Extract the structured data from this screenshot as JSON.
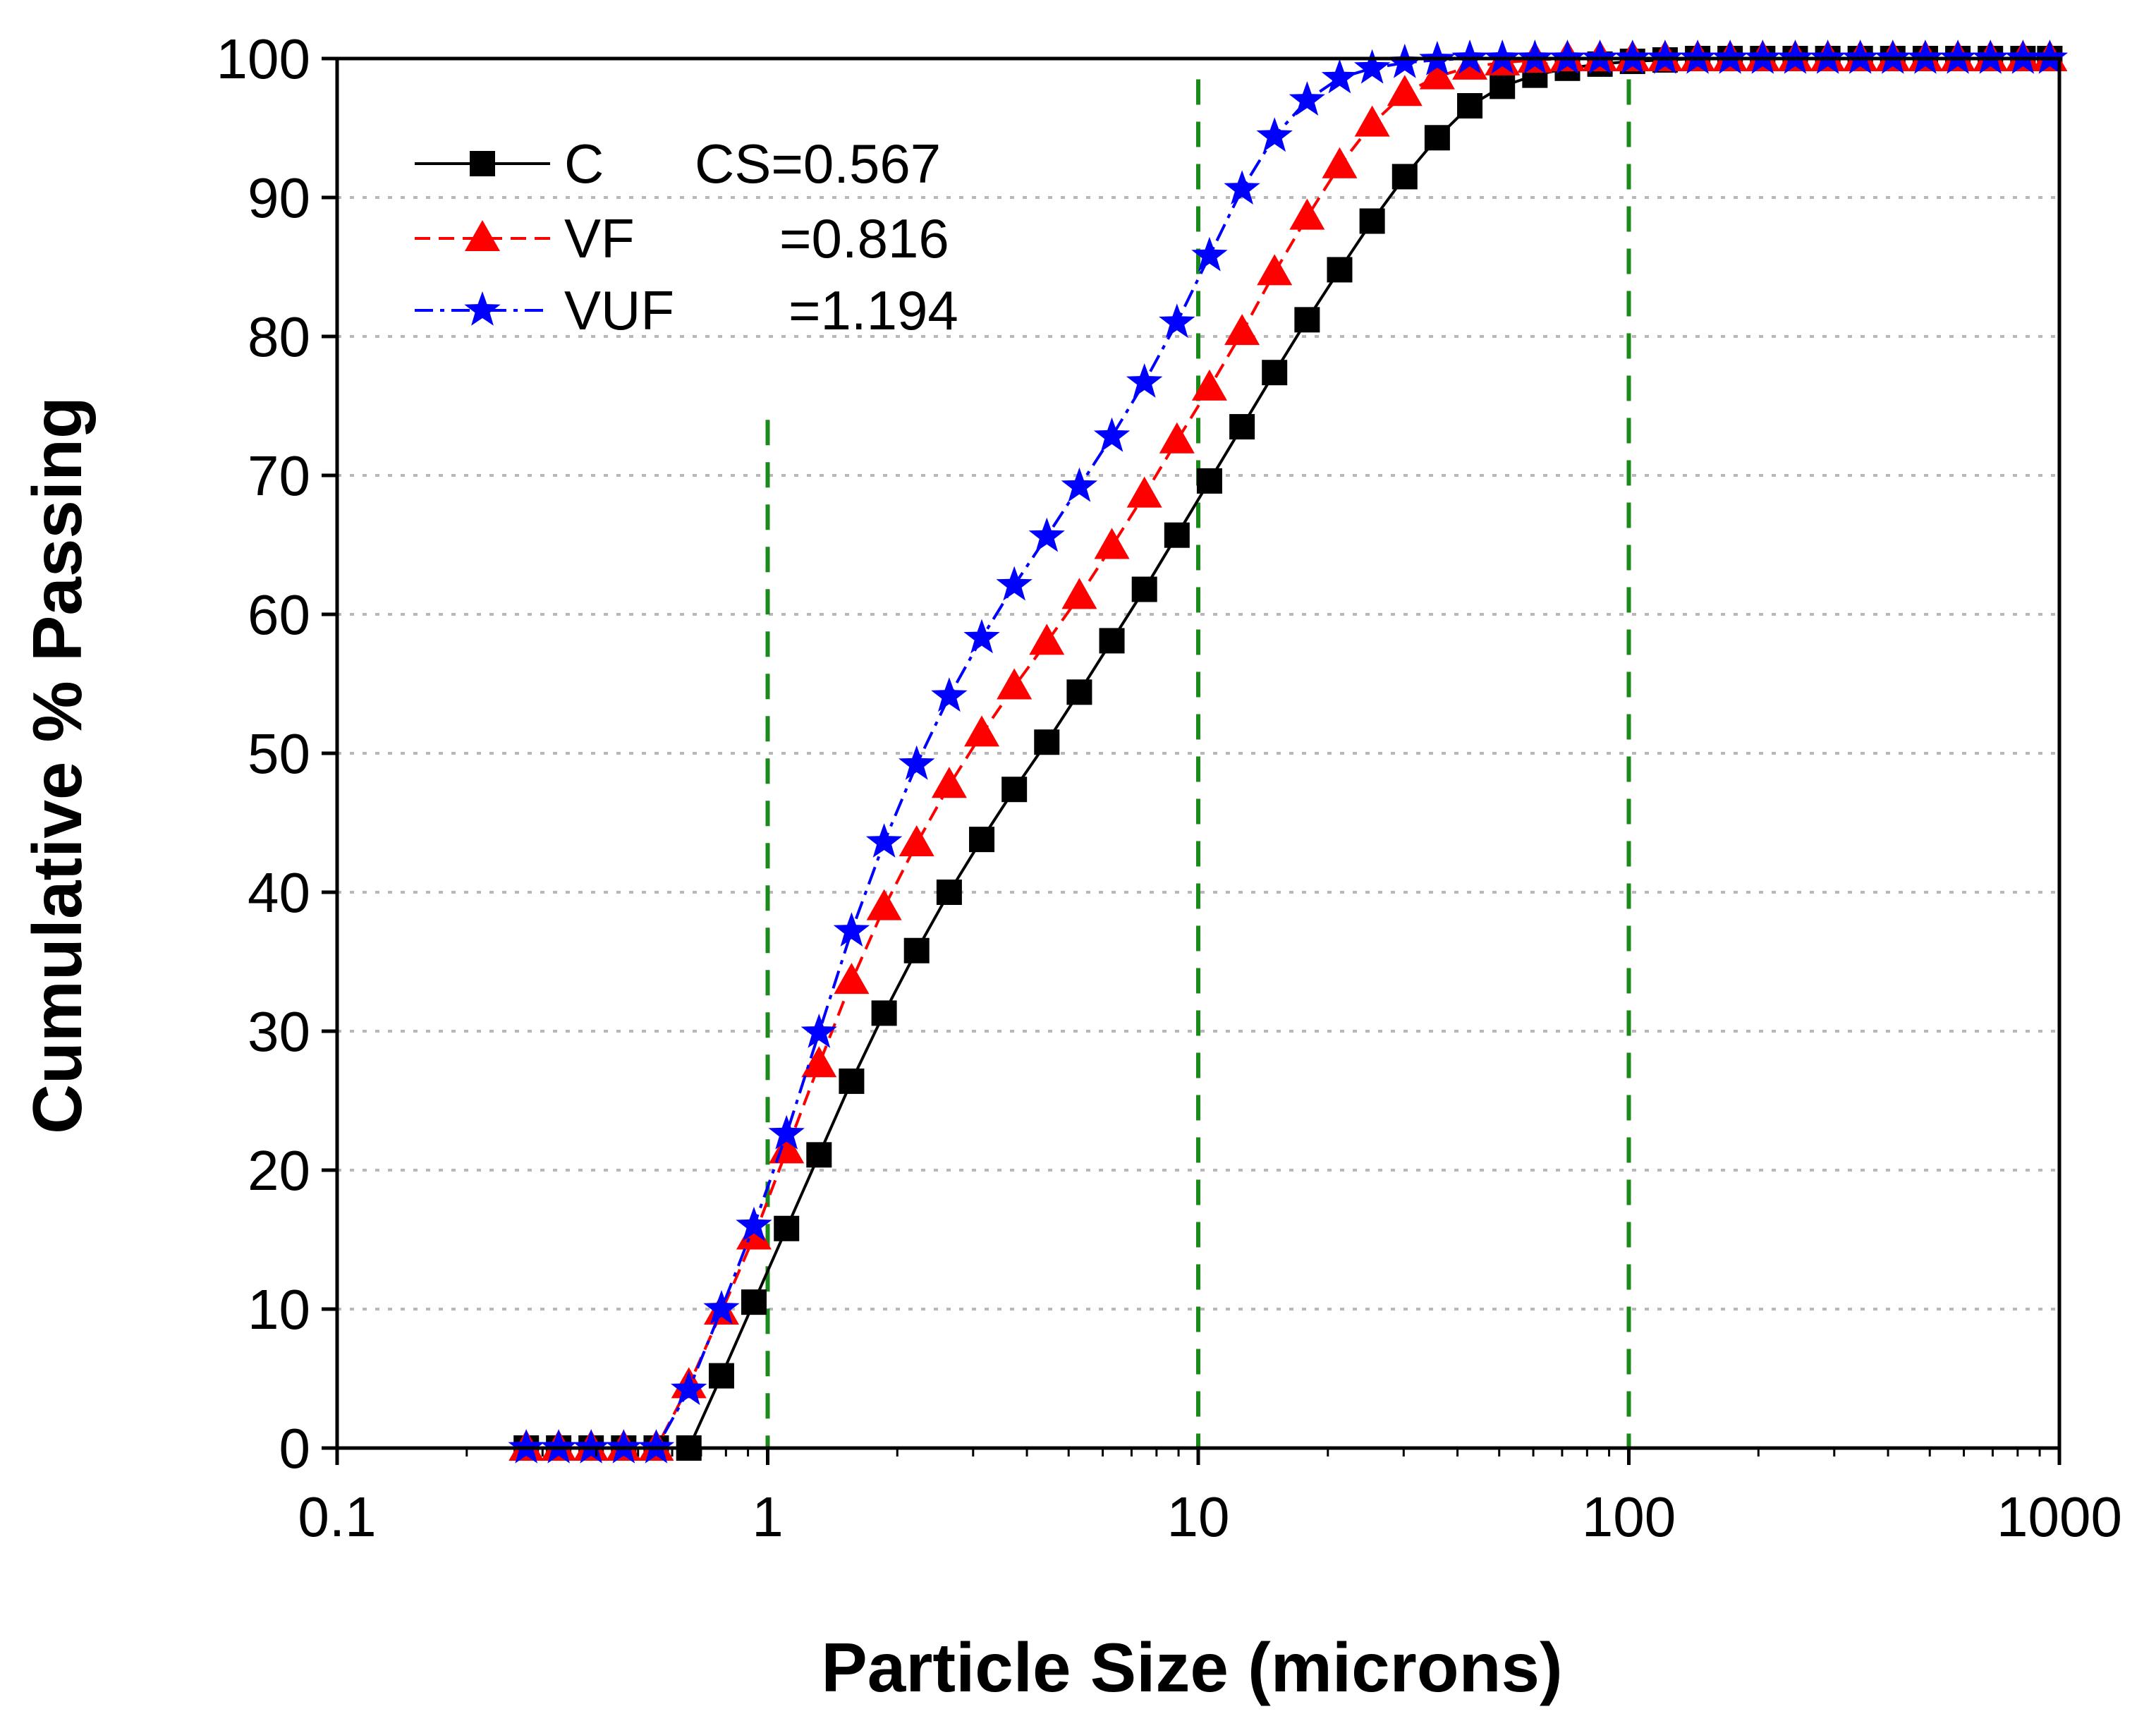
{
  "chart_data": {
    "type": "scatter",
    "xscale": "log",
    "xlabel": "Particle Size (microns)",
    "ylabel": "Cumulative % Passing",
    "xlim": [
      0.1,
      1000
    ],
    "ylim": [
      0,
      100
    ],
    "xticks": [
      0.1,
      1,
      10,
      100,
      1000
    ],
    "xtick_labels": [
      "0.1",
      "1",
      "10",
      "100",
      "1000"
    ],
    "yticks": [
      0,
      10,
      20,
      30,
      40,
      50,
      60,
      70,
      80,
      90,
      100
    ],
    "ytick_labels": [
      "0",
      "10",
      "20",
      "30",
      "40",
      "50",
      "60",
      "70",
      "80",
      "90",
      "100"
    ],
    "grid": "horizontal dotted",
    "reference_lines_x": [
      1,
      10,
      100
    ],
    "legend_position": "top-left",
    "series": [
      {
        "name": "C",
        "legend_value": "CS=0.567",
        "marker": "square",
        "color": "#000000",
        "line": "solid",
        "x": [
          0.275,
          0.327,
          0.389,
          0.463,
          0.551,
          0.656,
          0.781,
          0.929,
          1.106,
          1.316,
          1.566,
          1.864,
          2.218,
          2.64,
          3.142,
          3.739,
          4.449,
          5.295,
          6.301,
          7.499,
          8.924,
          10.62,
          12.64,
          15.04,
          17.9,
          21.3,
          25.35,
          30.17,
          35.9,
          42.73,
          50.85,
          60.52,
          72.02,
          85.71,
          102,
          121.4,
          144.5,
          171.9,
          204.6,
          243.5,
          289.8,
          344.8,
          410.3,
          488.3,
          581.1,
          691.6,
          823,
          950
        ],
        "y": [
          0,
          0,
          0,
          0,
          0,
          0,
          5.2,
          10.5,
          15.8,
          21.1,
          26.4,
          31.3,
          35.8,
          40.0,
          43.8,
          47.4,
          50.8,
          54.4,
          58.1,
          61.8,
          65.7,
          69.6,
          73.5,
          77.4,
          81.2,
          84.8,
          88.3,
          91.5,
          94.3,
          96.6,
          98.0,
          98.8,
          99.3,
          99.6,
          99.8,
          99.9,
          100,
          100,
          100,
          100,
          100,
          100,
          100,
          100,
          100,
          100,
          100,
          100
        ]
      },
      {
        "name": "VF",
        "legend_value": "=0.816",
        "marker": "triangle",
        "color": "#ff0000",
        "line": "dashed",
        "x": [
          0.275,
          0.327,
          0.389,
          0.463,
          0.551,
          0.656,
          0.781,
          0.929,
          1.106,
          1.316,
          1.566,
          1.864,
          2.218,
          2.64,
          3.142,
          3.739,
          4.449,
          5.295,
          6.301,
          7.499,
          8.924,
          10.62,
          12.64,
          15.04,
          17.9,
          21.3,
          25.35,
          30.17,
          35.9,
          42.73,
          50.85,
          60.52,
          72.02,
          85.71,
          102,
          121.4,
          144.5,
          171.9,
          204.6,
          243.5,
          289.8,
          344.8,
          410.3,
          488.3,
          581.1,
          691.6,
          823,
          950
        ],
        "y": [
          0,
          0,
          0,
          0,
          0,
          4.5,
          9.8,
          15.2,
          21.4,
          27.6,
          33.6,
          38.9,
          43.5,
          47.7,
          51.4,
          54.8,
          58.0,
          61.3,
          64.9,
          68.6,
          72.5,
          76.3,
          80.3,
          84.6,
          88.6,
          92.3,
          95.3,
          97.5,
          98.7,
          99.4,
          99.7,
          99.9,
          100,
          100,
          100,
          100,
          100,
          100,
          100,
          100,
          100,
          100,
          100,
          100,
          100,
          100,
          100,
          100
        ]
      },
      {
        "name": "VUF",
        "legend_value": "=1.194",
        "marker": "star",
        "color": "#0000ff",
        "line": "dash-dot",
        "x": [
          0.275,
          0.327,
          0.389,
          0.463,
          0.551,
          0.656,
          0.781,
          0.929,
          1.106,
          1.316,
          1.566,
          1.864,
          2.218,
          2.64,
          3.142,
          3.739,
          4.449,
          5.295,
          6.301,
          7.499,
          8.924,
          10.62,
          12.64,
          15.04,
          17.9,
          21.3,
          25.35,
          30.17,
          35.9,
          42.73,
          50.85,
          60.52,
          72.02,
          85.71,
          102,
          121.4,
          144.5,
          171.9,
          204.6,
          243.5,
          289.8,
          344.8,
          410.3,
          488.3,
          581.1,
          691.6,
          823,
          950
        ],
        "y": [
          0,
          0,
          0,
          0,
          0,
          4.2,
          10.0,
          16.0,
          22.6,
          29.9,
          37.2,
          43.6,
          49.2,
          54.1,
          58.3,
          62.1,
          65.6,
          69.2,
          72.8,
          76.7,
          81.0,
          85.8,
          90.6,
          94.4,
          97.0,
          98.6,
          99.3,
          99.7,
          99.9,
          100,
          100,
          100,
          100,
          100,
          100,
          100,
          100,
          100,
          100,
          100,
          100,
          100,
          100,
          100,
          100,
          100,
          100,
          100
        ]
      }
    ]
  }
}
